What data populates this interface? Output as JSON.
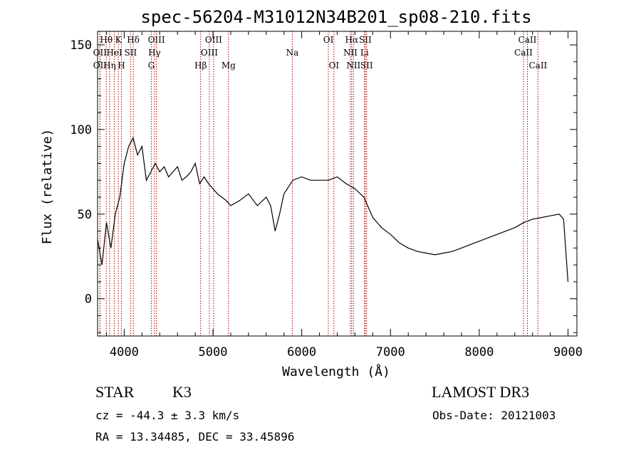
{
  "chart_data": {
    "type": "line",
    "title": "spec-56204-M31012N34B201_sp08-210.fits",
    "xlabel": "Wavelength (Å)",
    "ylabel": "Flux (relative)",
    "xlim": [
      3700,
      9100
    ],
    "ylim": [
      -22,
      158
    ],
    "x_ticks": [
      4000,
      5000,
      6000,
      7000,
      8000,
      9000
    ],
    "y_ticks": [
      0,
      50,
      100,
      150
    ],
    "x": [
      3700,
      3750,
      3800,
      3850,
      3900,
      3950,
      4000,
      4050,
      4100,
      4150,
      4200,
      4250,
      4300,
      4350,
      4400,
      4450,
      4500,
      4550,
      4600,
      4650,
      4700,
      4750,
      4800,
      4850,
      4900,
      4950,
      5000,
      5050,
      5100,
      5150,
      5200,
      5300,
      5400,
      5500,
      5600,
      5650,
      5700,
      5750,
      5800,
      5900,
      6000,
      6100,
      6200,
      6300,
      6400,
      6500,
      6600,
      6700,
      6800,
      6900,
      7000,
      7100,
      7200,
      7300,
      7400,
      7500,
      7600,
      7700,
      7800,
      7900,
      8000,
      8100,
      8200,
      8300,
      8400,
      8500,
      8600,
      8700,
      8800,
      8900,
      8950,
      9000
    ],
    "values": [
      35,
      20,
      45,
      30,
      50,
      60,
      80,
      90,
      95,
      85,
      90,
      70,
      75,
      80,
      75,
      78,
      72,
      75,
      78,
      70,
      72,
      75,
      80,
      68,
      72,
      68,
      65,
      62,
      60,
      58,
      55,
      58,
      62,
      55,
      60,
      55,
      40,
      50,
      62,
      70,
      72,
      70,
      70,
      70,
      72,
      68,
      65,
      60,
      48,
      42,
      38,
      33,
      30,
      28,
      27,
      26,
      27,
      28,
      30,
      32,
      34,
      36,
      38,
      40,
      42,
      45,
      47,
      48,
      49,
      50,
      47,
      10
    ],
    "spectral_lines": [
      {
        "label": "OII",
        "wavelength": 3727,
        "row": 3
      },
      {
        "label": "OII",
        "wavelength": 3727,
        "row": 2
      },
      {
        "label": "Hθ",
        "wavelength": 3798,
        "row": 1
      },
      {
        "label": "Hη",
        "wavelength": 3835,
        "row": 3
      },
      {
        "label": "HeI",
        "wavelength": 3889,
        "row": 2
      },
      {
        "label": "K",
        "wavelength": 3934,
        "row": 1
      },
      {
        "label": "H",
        "wavelength": 3969,
        "row": 3
      },
      {
        "label": "SII",
        "wavelength": 4072,
        "row": 2
      },
      {
        "label": "Hδ",
        "wavelength": 4102,
        "row": 1
      },
      {
        "label": "G",
        "wavelength": 4305,
        "row": 3
      },
      {
        "label": "Hγ",
        "wavelength": 4341,
        "row": 2
      },
      {
        "label": "OIII",
        "wavelength": 4363,
        "row": 1
      },
      {
        "label": "Hβ",
        "wavelength": 4861,
        "row": 3
      },
      {
        "label": "OIII",
        "wavelength": 4959,
        "row": 2
      },
      {
        "label": "OIII",
        "wavelength": 5007,
        "row": 1
      },
      {
        "label": "Mg",
        "wavelength": 5175,
        "row": 3
      },
      {
        "label": "Na",
        "wavelength": 5894,
        "row": 2
      },
      {
        "label": "OI",
        "wavelength": 6300,
        "row": 1
      },
      {
        "label": "OI",
        "wavelength": 6363,
        "row": 3
      },
      {
        "label": "NII",
        "wavelength": 6548,
        "row": 2
      },
      {
        "label": "Hα",
        "wavelength": 6563,
        "row": 1
      },
      {
        "label": "NII",
        "wavelength": 6583,
        "row": 3
      },
      {
        "label": "Li",
        "wavelength": 6707,
        "row": 2
      },
      {
        "label": "SII",
        "wavelength": 6716,
        "row": 1
      },
      {
        "label": "SII",
        "wavelength": 6731,
        "row": 3
      },
      {
        "label": "CaII",
        "wavelength": 8498,
        "row": 2
      },
      {
        "label": "CaII",
        "wavelength": 8542,
        "row": 1
      },
      {
        "label": "CaII",
        "wavelength": 8662,
        "row": 3
      }
    ],
    "colors": {
      "spectrum": "#000000",
      "lines": "#b00000"
    }
  },
  "info": {
    "object_class": "STAR",
    "subclass": "K3",
    "survey": "LAMOST DR3",
    "redshift": "cz = -44.3 ± 3.3 km/s",
    "obs_date": "Obs-Date: 20121003",
    "coordinates": "RA =  13.34485, DEC =  33.45896"
  }
}
